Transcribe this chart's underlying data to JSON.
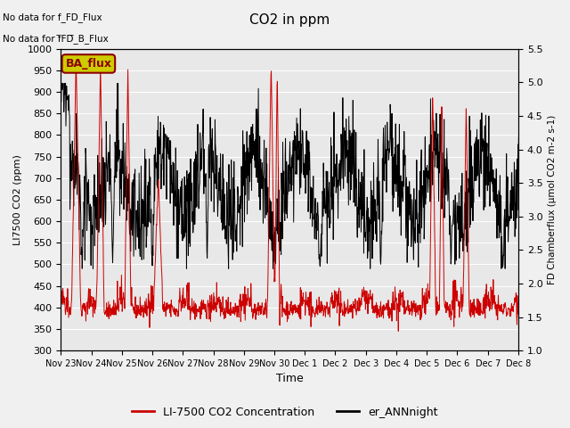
{
  "title": "CO2 in ppm",
  "xlabel": "Time",
  "ylabel_left": "LI7500 CO2 (ppm)",
  "ylabel_right": "FD Chamberflux (μmol CO2 m-2 s-1)",
  "annotation_line1": "No data for f_FD_Flux",
  "annotation_line2": "No data for f̅FD̅_B_Flux",
  "legend_box_label": "BA_flux",
  "legend_line1": "LI-7500 CO2 Concentration",
  "legend_line2": "er_ANNnight",
  "ylim_left": [
    300,
    1000
  ],
  "ylim_right": [
    1.0,
    5.5
  ],
  "yticks_left": [
    300,
    350,
    400,
    450,
    500,
    550,
    600,
    650,
    700,
    750,
    800,
    850,
    900,
    950,
    1000
  ],
  "yticks_right": [
    1.0,
    1.5,
    2.0,
    2.5,
    3.0,
    3.5,
    4.0,
    4.5,
    5.0,
    5.5
  ],
  "bg_color": "#f0f0f0",
  "plot_bg": "#e8e8e8",
  "red_color": "#cc0000",
  "black_color": "#000000",
  "box_facecolor": "#cccc00",
  "box_edgecolor": "#8B0000",
  "seed": 42,
  "n_points": 1440,
  "fig_width": 6.4,
  "fig_height": 4.8,
  "dpi": 100
}
